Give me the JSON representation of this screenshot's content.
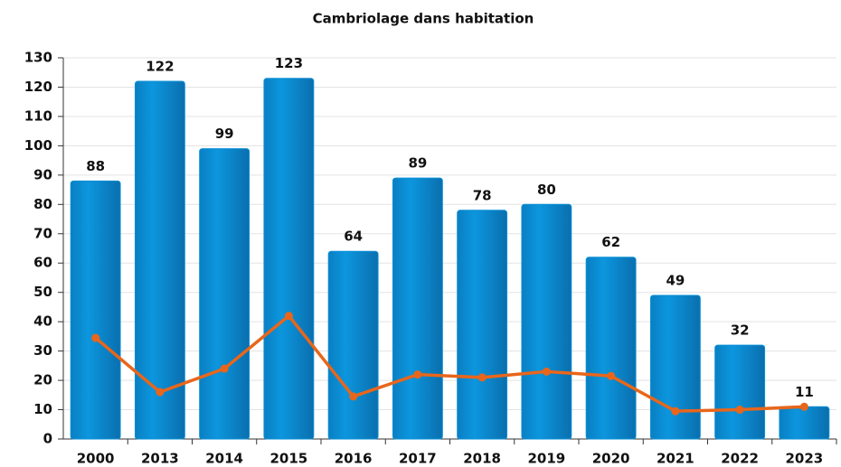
{
  "chart_data": {
    "type": "bar",
    "title": "Cambriolage dans habitation",
    "categories": [
      "2000",
      "2013",
      "2014",
      "2015",
      "2016",
      "2017",
      "2018",
      "2019",
      "2020",
      "2021",
      "2022",
      "2023"
    ],
    "series": [
      {
        "type": "bar",
        "color": "#0a8fd6",
        "values": [
          88,
          122,
          99,
          123,
          64,
          89,
          78,
          80,
          62,
          49,
          32,
          11
        ]
      },
      {
        "type": "line",
        "color": "#e8661b",
        "values": [
          34.5,
          16,
          24,
          42,
          14.5,
          22,
          21,
          23,
          21.5,
          9.5,
          10,
          11
        ]
      }
    ],
    "ylim": [
      0,
      130
    ],
    "yticks": [
      0,
      10,
      20,
      30,
      40,
      50,
      60,
      70,
      80,
      90,
      100,
      110,
      120,
      130
    ],
    "grid": true
  }
}
